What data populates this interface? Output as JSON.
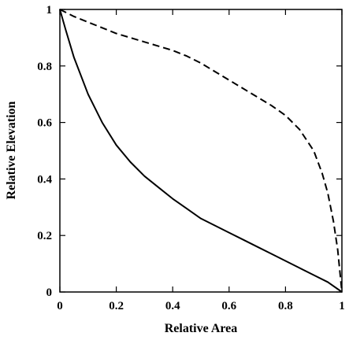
{
  "chart_data": {
    "type": "line",
    "title": "",
    "xlabel": "Relative Area",
    "ylabel": "Relative Elevation",
    "xlim": [
      0,
      1
    ],
    "ylim": [
      0,
      1
    ],
    "grid": false,
    "legend": "none",
    "x_ticks": [
      0,
      0.2,
      0.4,
      0.6,
      0.8,
      1
    ],
    "y_ticks": [
      0,
      0.2,
      0.4,
      0.6,
      0.8,
      1
    ],
    "x_tick_labels": [
      "0",
      "0.2",
      "0.4",
      "0.6",
      "0.8",
      "1"
    ],
    "y_tick_labels": [
      "0",
      "0.2",
      "0.4",
      "0.6",
      "0.8",
      "1"
    ],
    "series": [
      {
        "style": "solid",
        "color": "#000000",
        "points": [
          [
            0,
            1
          ],
          [
            0.02,
            0.93
          ],
          [
            0.05,
            0.83
          ],
          [
            0.1,
            0.7
          ],
          [
            0.15,
            0.6
          ],
          [
            0.2,
            0.52
          ],
          [
            0.25,
            0.46
          ],
          [
            0.3,
            0.41
          ],
          [
            0.35,
            0.37
          ],
          [
            0.4,
            0.33
          ],
          [
            0.45,
            0.295
          ],
          [
            0.5,
            0.26
          ],
          [
            0.55,
            0.235
          ],
          [
            0.6,
            0.21
          ],
          [
            0.65,
            0.185
          ],
          [
            0.7,
            0.16
          ],
          [
            0.75,
            0.135
          ],
          [
            0.8,
            0.11
          ],
          [
            0.85,
            0.085
          ],
          [
            0.9,
            0.06
          ],
          [
            0.95,
            0.035
          ],
          [
            1,
            0
          ]
        ]
      },
      {
        "style": "dashed",
        "color": "#000000",
        "points": [
          [
            0,
            1
          ],
          [
            0.05,
            0.975
          ],
          [
            0.1,
            0.955
          ],
          [
            0.15,
            0.935
          ],
          [
            0.2,
            0.915
          ],
          [
            0.25,
            0.9
          ],
          [
            0.3,
            0.885
          ],
          [
            0.35,
            0.87
          ],
          [
            0.4,
            0.855
          ],
          [
            0.45,
            0.835
          ],
          [
            0.5,
            0.81
          ],
          [
            0.55,
            0.78
          ],
          [
            0.6,
            0.75
          ],
          [
            0.65,
            0.72
          ],
          [
            0.7,
            0.69
          ],
          [
            0.75,
            0.66
          ],
          [
            0.8,
            0.625
          ],
          [
            0.85,
            0.575
          ],
          [
            0.9,
            0.5
          ],
          [
            0.93,
            0.42
          ],
          [
            0.95,
            0.35
          ],
          [
            0.97,
            0.25
          ],
          [
            0.985,
            0.15
          ],
          [
            0.995,
            0.05
          ],
          [
            1,
            0
          ]
        ]
      }
    ]
  }
}
